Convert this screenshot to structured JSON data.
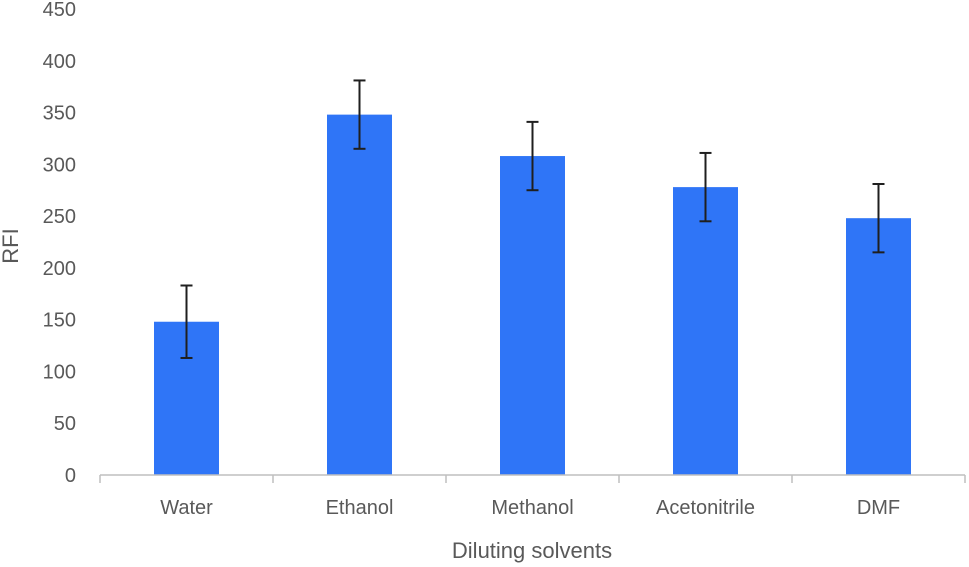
{
  "chart_data": {
    "type": "bar",
    "title": "",
    "xlabel": "Diluting solvents",
    "ylabel": "RFI",
    "categories": [
      "Water",
      "Ethanol",
      "Methanol",
      "Acetonitrile",
      "DMF"
    ],
    "values": [
      148,
      348,
      308,
      278,
      248
    ],
    "error": [
      35,
      33,
      33,
      33,
      33
    ],
    "ylim": [
      0,
      450
    ],
    "yticks": [
      0,
      50,
      100,
      150,
      200,
      250,
      300,
      350,
      400,
      450
    ],
    "grid": false,
    "legend": "none",
    "bar_color": "#2F75F7",
    "error_color": "#1F1F1F",
    "axis_color": "#BFBFBF"
  }
}
